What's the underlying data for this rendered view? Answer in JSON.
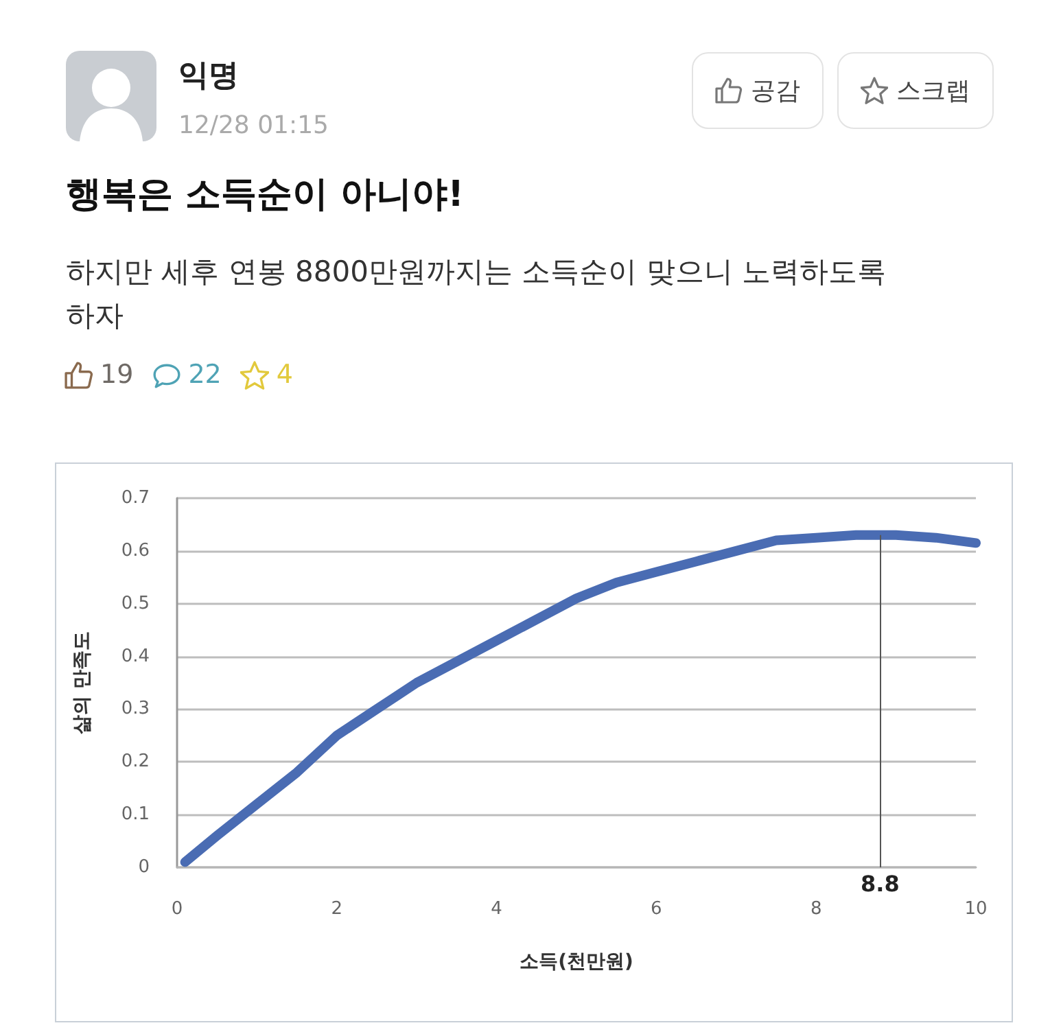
{
  "chart_data": {
    "type": "line",
    "title": "행복은 소득순이 아니야!",
    "subtitle": "하지만 세후 연봉 8800만원까지는 소득순이 맞으니 노력하도록 하자",
    "annotations": [
      "익명",
      "12/28 01:15",
      "공감",
      "스크랩",
      "19",
      "22",
      "4"
    ],
    "xlabel": "소득(천만원)",
    "ylabel": "삶의 만족도",
    "x": [
      0.1,
      0.5,
      1,
      1.5,
      2,
      2.5,
      3,
      3.5,
      4,
      4.5,
      5,
      5.5,
      6,
      6.5,
      7,
      7.5,
      8,
      8.5,
      8.8,
      9,
      9.5,
      10
    ],
    "series": [
      {
        "color": "#4a6cb3",
        "values": [
          0.01,
          0.06,
          0.12,
          0.18,
          0.25,
          0.3,
          0.35,
          0.39,
          0.43,
          0.47,
          0.51,
          0.54,
          0.56,
          0.58,
          0.6,
          0.62,
          0.625,
          0.63,
          0.63,
          0.63,
          0.625,
          0.615
        ]
      }
    ],
    "xlim": [
      0,
      10
    ],
    "xticks": [
      0,
      2,
      4,
      6,
      8,
      10
    ],
    "ylim": [
      0,
      0.7
    ],
    "yticks": [
      0,
      0.1,
      0.2,
      0.3,
      0.4,
      0.5,
      0.6,
      0.7
    ],
    "grid": "y",
    "ref_lines": [
      {
        "axis": "x",
        "value": 8.8,
        "label": "8.8",
        "color": "#555555"
      }
    ]
  }
}
